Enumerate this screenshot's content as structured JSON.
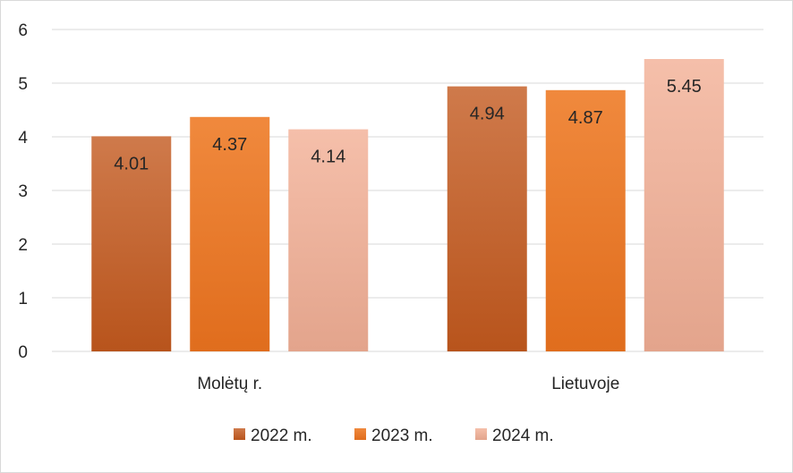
{
  "chart_data": {
    "type": "bar",
    "categories": [
      "Molėtų r.",
      "Lietuvoje"
    ],
    "series": [
      {
        "name": "2022 m.",
        "values": [
          4.01,
          4.94
        ],
        "color_top": "#cf7a4b",
        "color_bottom": "#b8541c"
      },
      {
        "name": "2023 m.",
        "values": [
          4.37,
          4.87
        ],
        "color_top": "#f0893d",
        "color_bottom": "#e06d1d"
      },
      {
        "name": "2024 m.",
        "values": [
          4.14,
          5.45
        ],
        "color_top": "#f5bfaa",
        "color_bottom": "#e3a48c"
      }
    ],
    "y_ticks": [
      "0",
      "1",
      "2",
      "3",
      "4",
      "5",
      "6"
    ],
    "ylim": [
      0,
      6
    ],
    "grid": true,
    "legend_position": "bottom"
  }
}
